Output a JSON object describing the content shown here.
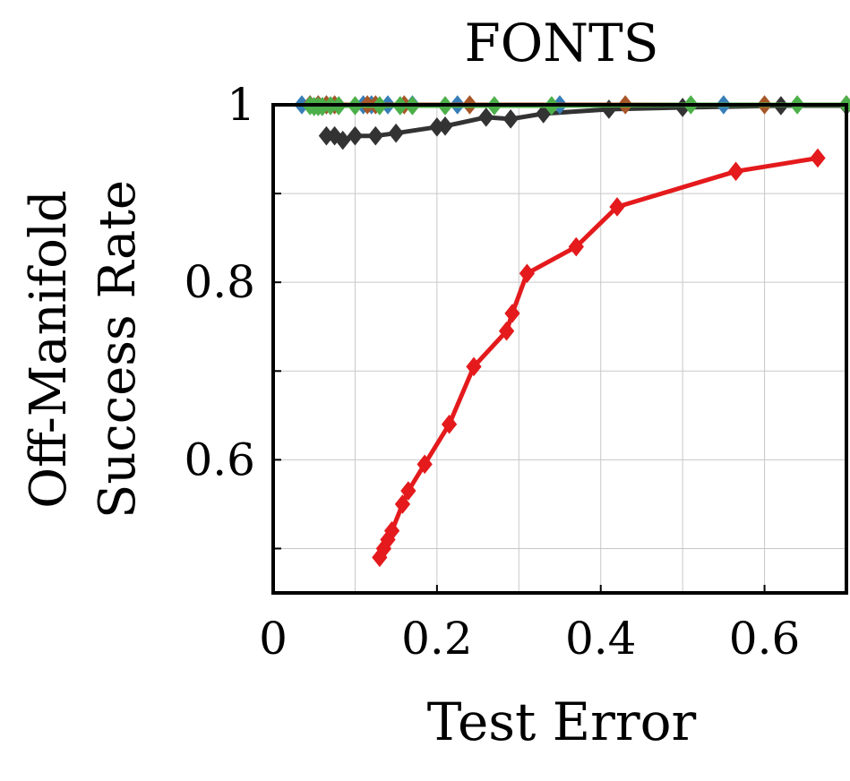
{
  "chart_data": {
    "type": "line",
    "title": "FONTS",
    "xlabel": "Test Error",
    "ylabel_lines": [
      "Off-Manifold",
      "Success Rate"
    ],
    "xlim": [
      0,
      0.7
    ],
    "ylim": [
      0.45,
      1.0
    ],
    "xticks": [
      0,
      0.2,
      0.4,
      0.6
    ],
    "xtick_labels": [
      "0",
      "0.2",
      "0.4",
      "0.6"
    ],
    "yticks": [
      0.5,
      0.6,
      0.7,
      0.8,
      0.9,
      1.0
    ],
    "ytick_labels": [
      "",
      "0.6",
      "",
      "0.8",
      "",
      "1"
    ],
    "grid": true,
    "marker": "diamond",
    "series": [
      {
        "color": "#e41a1c",
        "x": [
          0.13,
          0.135,
          0.14,
          0.145,
          0.158,
          0.165,
          0.185,
          0.215,
          0.245,
          0.285,
          0.292,
          0.31,
          0.37,
          0.42,
          0.565,
          0.665
        ],
        "y": [
          0.49,
          0.5,
          0.51,
          0.52,
          0.55,
          0.565,
          0.595,
          0.64,
          0.705,
          0.745,
          0.765,
          0.81,
          0.84,
          0.885,
          0.925,
          0.94
        ]
      },
      {
        "color": "#333333",
        "x": [
          0.065,
          0.075,
          0.085,
          0.1,
          0.125,
          0.15,
          0.2,
          0.21,
          0.26,
          0.29,
          0.33,
          0.41,
          0.5,
          0.62,
          0.7
        ],
        "y": [
          0.965,
          0.965,
          0.96,
          0.965,
          0.965,
          0.968,
          0.975,
          0.976,
          0.986,
          0.984,
          0.99,
          0.995,
          0.997,
          0.999,
          0.999
        ]
      },
      {
        "color": "#377eb8",
        "x": [
          0.035,
          0.045,
          0.055,
          0.065,
          0.11,
          0.12,
          0.14,
          0.17,
          0.225,
          0.35,
          0.55,
          0.7
        ],
        "y": [
          1.0,
          1.0,
          1.0,
          1.0,
          1.0,
          1.0,
          1.0,
          1.0,
          1.0,
          1.0,
          1.0,
          1.0
        ]
      },
      {
        "color": "#a65628",
        "x": [
          0.045,
          0.055,
          0.065,
          0.075,
          0.115,
          0.125,
          0.16,
          0.24,
          0.43,
          0.6,
          0.7
        ],
        "y": [
          1.0,
          1.0,
          1.0,
          1.0,
          1.0,
          1.0,
          1.0,
          1.0,
          1.0,
          1.0,
          1.0
        ]
      },
      {
        "color": "#4daf4a",
        "x": [
          0.045,
          0.05,
          0.055,
          0.06,
          0.07,
          0.08,
          0.1,
          0.13,
          0.155,
          0.17,
          0.21,
          0.27,
          0.34,
          0.51,
          0.64,
          0.7
        ],
        "y": [
          0.999,
          0.998,
          0.998,
          0.998,
          0.999,
          0.999,
          0.999,
          0.999,
          0.999,
          0.999,
          0.999,
          0.999,
          0.999,
          1.0,
          1.0,
          1.0
        ]
      }
    ]
  }
}
